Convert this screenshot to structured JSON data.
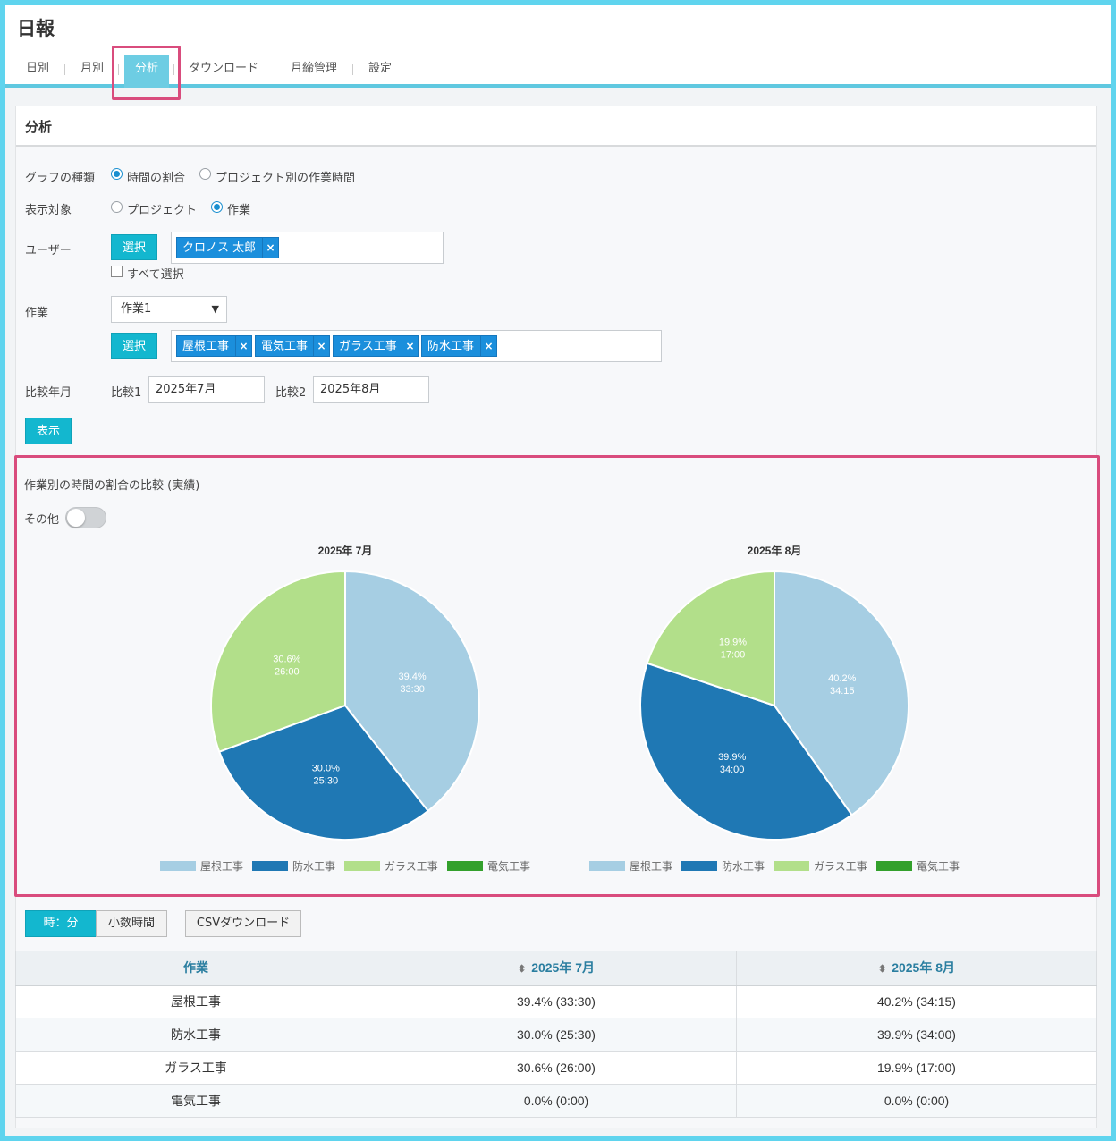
{
  "app": {
    "title": "日報"
  },
  "tabs": [
    {
      "label": "日別",
      "active": false
    },
    {
      "label": "月別",
      "active": false
    },
    {
      "label": "分析",
      "active": true
    },
    {
      "label": "ダウンロード",
      "active": false
    },
    {
      "label": "月締管理",
      "active": false
    },
    {
      "label": "設定",
      "active": false
    }
  ],
  "panel": {
    "title": "分析"
  },
  "form": {
    "graph_type": {
      "label": "グラフの種類",
      "options": [
        "時間の割合",
        "プロジェクト別の作業時間"
      ],
      "selected": "時間の割合"
    },
    "target": {
      "label": "表示対象",
      "options": [
        "プロジェクト",
        "作業"
      ],
      "selected": "作業"
    },
    "user": {
      "label": "ユーザー",
      "select_button": "選択",
      "tags": [
        "クロノス 太郎"
      ],
      "select_all": "すべて選択"
    },
    "task": {
      "label": "作業",
      "dropdown_value": "作業1",
      "select_button": "選択",
      "tags": [
        "屋根工事",
        "電気工事",
        "ガラス工事",
        "防水工事"
      ]
    },
    "compare": {
      "label": "比較年月",
      "label1": "比較1",
      "value1": "2025年7月",
      "label2": "比較2",
      "value2": "2025年8月"
    },
    "show_button": "表示"
  },
  "chart_section": {
    "title": "作業別の時間の割合の比較 (実績)",
    "toggle_label": "その他",
    "toggle_on": false
  },
  "colors": {
    "屋根工事": "#a6cee3",
    "防水工事": "#1f78b4",
    "ガラス工事": "#b2df8a",
    "電気工事": "#33a02c",
    "accent": "#13b7cf",
    "highlight": "#d94c7d"
  },
  "chart_data": [
    {
      "type": "pie",
      "title": "2025年 7月",
      "categories": [
        "屋根工事",
        "防水工事",
        "ガラス工事",
        "電気工事"
      ],
      "values": [
        39.4,
        30.0,
        30.6,
        0.0
      ],
      "labels": [
        "39.4%\n33:30",
        "30.0%\n25:30",
        "30.6%\n26:00",
        ""
      ],
      "legend": "bottom"
    },
    {
      "type": "pie",
      "title": "2025年 8月",
      "categories": [
        "屋根工事",
        "防水工事",
        "ガラス工事",
        "電気工事"
      ],
      "values": [
        40.2,
        39.9,
        19.9,
        0.0
      ],
      "labels": [
        "40.2%\n34:15",
        "39.9%\n34:00",
        "19.9%\n17:00",
        ""
      ],
      "legend": "bottom"
    }
  ],
  "table_controls": {
    "hm_button": "時：分",
    "decimal_button": "小数時間",
    "csv_button": "CSVダウンロード"
  },
  "table": {
    "headers": [
      "作業",
      "2025年 7月",
      "2025年 8月"
    ],
    "rows": [
      [
        "屋根工事",
        "39.4% (33:30)",
        "40.2% (34:15)"
      ],
      [
        "防水工事",
        "30.0% (25:30)",
        "39.9% (34:00)"
      ],
      [
        "ガラス工事",
        "30.6% (26:00)",
        "19.9% (17:00)"
      ],
      [
        "電気工事",
        "0.0% (0:00)",
        "0.0% (0:00)"
      ]
    ]
  }
}
